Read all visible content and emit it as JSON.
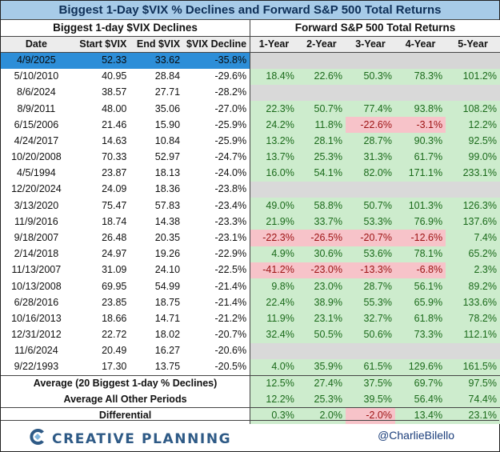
{
  "title": "Biggest 1-Day $VIX % Declines and Forward S&P 500 Total Returns",
  "left_section_title": "Biggest 1-day $VIX Declines",
  "right_section_title": "Forward S&P 500 Total Returns",
  "columns": [
    "Date",
    "Start $VIX",
    "End $VIX",
    "$VIX Decline",
    "1-Year",
    "2-Year",
    "3-Year",
    "4-Year",
    "5-Year"
  ],
  "rows": [
    {
      "date": "4/9/2025",
      "start": "52.33",
      "end": "33.62",
      "decline": "-35.8%",
      "returns": [
        "",
        "",
        "",
        "",
        ""
      ]
    },
    {
      "date": "5/10/2010",
      "start": "40.95",
      "end": "28.84",
      "decline": "-29.6%",
      "returns": [
        "18.4%",
        "22.6%",
        "50.3%",
        "78.3%",
        "101.2%"
      ]
    },
    {
      "date": "8/6/2024",
      "start": "38.57",
      "end": "27.71",
      "decline": "-28.2%",
      "returns": [
        "",
        "",
        "",
        "",
        ""
      ]
    },
    {
      "date": "8/9/2011",
      "start": "48.00",
      "end": "35.06",
      "decline": "-27.0%",
      "returns": [
        "22.3%",
        "50.7%",
        "77.4%",
        "93.8%",
        "108.2%"
      ]
    },
    {
      "date": "6/15/2006",
      "start": "21.46",
      "end": "15.90",
      "decline": "-25.9%",
      "returns": [
        "24.2%",
        "11.8%",
        "-22.6%",
        "-3.1%",
        "12.2%"
      ]
    },
    {
      "date": "4/24/2017",
      "start": "14.63",
      "end": "10.84",
      "decline": "-25.9%",
      "returns": [
        "13.2%",
        "28.1%",
        "28.7%",
        "90.3%",
        "92.5%"
      ]
    },
    {
      "date": "10/20/2008",
      "start": "70.33",
      "end": "52.97",
      "decline": "-24.7%",
      "returns": [
        "13.7%",
        "25.3%",
        "31.3%",
        "61.7%",
        "99.0%"
      ]
    },
    {
      "date": "4/5/1994",
      "start": "23.87",
      "end": "18.13",
      "decline": "-24.0%",
      "returns": [
        "16.0%",
        "54.1%",
        "82.0%",
        "171.1%",
        "233.1%"
      ]
    },
    {
      "date": "12/20/2024",
      "start": "24.09",
      "end": "18.36",
      "decline": "-23.8%",
      "returns": [
        "",
        "",
        "",
        "",
        ""
      ]
    },
    {
      "date": "3/13/2020",
      "start": "75.47",
      "end": "57.83",
      "decline": "-23.4%",
      "returns": [
        "49.0%",
        "58.8%",
        "50.7%",
        "101.3%",
        "126.3%"
      ]
    },
    {
      "date": "11/9/2016",
      "start": "18.74",
      "end": "14.38",
      "decline": "-23.3%",
      "returns": [
        "21.9%",
        "33.7%",
        "53.3%",
        "76.9%",
        "137.6%"
      ]
    },
    {
      "date": "9/18/2007",
      "start": "26.48",
      "end": "20.35",
      "decline": "-23.1%",
      "returns": [
        "-22.3%",
        "-26.5%",
        "-20.7%",
        "-12.6%",
        "7.4%"
      ]
    },
    {
      "date": "2/14/2018",
      "start": "24.97",
      "end": "19.26",
      "decline": "-22.9%",
      "returns": [
        "4.9%",
        "30.6%",
        "53.6%",
        "78.1%",
        "65.2%"
      ]
    },
    {
      "date": "11/13/2007",
      "start": "31.09",
      "end": "24.10",
      "decline": "-22.5%",
      "returns": [
        "-41.2%",
        "-23.0%",
        "-13.3%",
        "-6.8%",
        "2.3%"
      ]
    },
    {
      "date": "10/13/2008",
      "start": "69.95",
      "end": "54.99",
      "decline": "-21.4%",
      "returns": [
        "9.8%",
        "23.0%",
        "28.7%",
        "56.1%",
        "89.2%"
      ]
    },
    {
      "date": "6/28/2016",
      "start": "23.85",
      "end": "18.75",
      "decline": "-21.4%",
      "returns": [
        "22.4%",
        "38.9%",
        "55.3%",
        "65.9%",
        "133.6%"
      ]
    },
    {
      "date": "10/16/2013",
      "start": "18.66",
      "end": "14.71",
      "decline": "-21.2%",
      "returns": [
        "11.9%",
        "23.1%",
        "32.7%",
        "61.8%",
        "78.2%"
      ]
    },
    {
      "date": "12/31/2012",
      "start": "22.72",
      "end": "18.02",
      "decline": "-20.7%",
      "returns": [
        "32.4%",
        "50.5%",
        "50.6%",
        "73.3%",
        "112.1%"
      ]
    },
    {
      "date": "11/6/2024",
      "start": "20.49",
      "end": "16.27",
      "decline": "-20.6%",
      "returns": [
        "",
        "",
        "",
        "",
        ""
      ]
    },
    {
      "date": "9/22/1993",
      "start": "17.30",
      "end": "13.75",
      "decline": "-20.5%",
      "returns": [
        "4.0%",
        "35.9%",
        "61.5%",
        "129.6%",
        "161.5%"
      ]
    }
  ],
  "summary": [
    {
      "label": "Average (20 Biggest 1-day % Declines)",
      "returns": [
        "12.5%",
        "27.4%",
        "37.5%",
        "69.7%",
        "97.5%"
      ]
    },
    {
      "label": "Average All Other Periods",
      "returns": [
        "12.2%",
        "25.3%",
        "39.5%",
        "56.4%",
        "74.4%"
      ]
    },
    {
      "label": "Differential",
      "returns": [
        "0.3%",
        "2.0%",
        "-2.0%",
        "13.4%",
        "23.1%"
      ]
    }
  ],
  "brand": "CREATIVE PLANNING",
  "handle": "@CharlieBilello",
  "colors": {
    "title_bg": "#a7cbe8",
    "highlight_row": "#2d8ed8",
    "positive_bg": "#cdeccd",
    "negative_bg": "#f7c3c9",
    "brand": "#2e5a86"
  },
  "icons": {
    "brand_logo": "creative-planning-logo-icon"
  }
}
